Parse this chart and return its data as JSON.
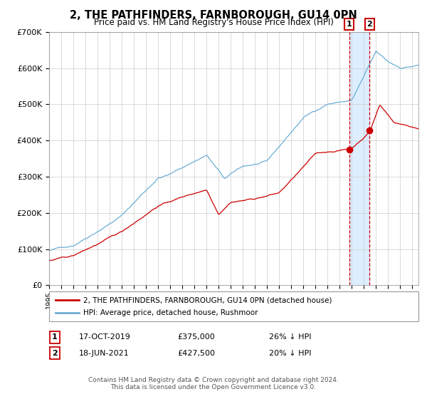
{
  "title": "2, THE PATHFINDERS, FARNBOROUGH, GU14 0PN",
  "subtitle": "Price paid vs. HM Land Registry's House Price Index (HPI)",
  "legend_line1": "2, THE PATHFINDERS, FARNBOROUGH, GU14 0PN (detached house)",
  "legend_line2": "HPI: Average price, detached house, Rushmoor",
  "annotation1_date": "17-OCT-2019",
  "annotation1_price": "£375,000",
  "annotation1_hpi": "26% ↓ HPI",
  "annotation1_year": 2019.79,
  "annotation1_value": 375000,
  "annotation2_date": "18-JUN-2021",
  "annotation2_price": "£427,500",
  "annotation2_hpi": "20% ↓ HPI",
  "annotation2_year": 2021.46,
  "annotation2_value": 427500,
  "footer1": "Contains HM Land Registry data © Crown copyright and database right 2024.",
  "footer2": "This data is licensed under the Open Government Licence v3.0.",
  "hpi_color": "#6baed6",
  "price_color": "#cc0000",
  "vline_color": "#cc0000",
  "highlight_color": "#ddeeff",
  "grid_color": "#cccccc",
  "background_color": "#ffffff",
  "ylim": [
    0,
    700000
  ],
  "yticks": [
    0,
    100000,
    200000,
    300000,
    400000,
    500000,
    600000,
    700000
  ],
  "xlim_start": 1995.0,
  "xlim_end": 2025.5
}
